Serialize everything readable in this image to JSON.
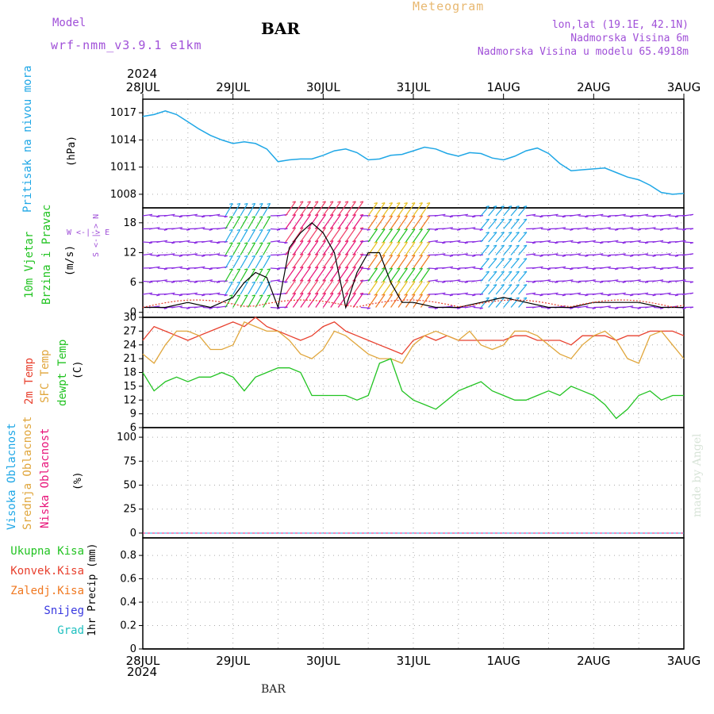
{
  "header": {
    "model_label": "Model",
    "model_name": "wrf-nmm_v3.9.1 e1km",
    "station": "BAR",
    "meteogram": "Meteogram",
    "lonlat": "lon,lat (19.1E, 42.1N)",
    "altitude": "Nadmorska Visina 6m",
    "model_altitude": "Nadmorska Visina u modelu 65.4918m",
    "year_top": "2024",
    "year_bottom": "2024",
    "footer_station": "BAR",
    "credit": "made by Angel"
  },
  "colors": {
    "pressure": "#1fa7e6",
    "temp2m": "#e8402e",
    "sfctemp": "#e0a63c",
    "dewpt": "#22c322",
    "grid": "#aaaaaa",
    "cloud_high": "#1fa7e6",
    "cloud_mid": "#e0a63c",
    "cloud_low": "#e8147a",
    "precip_total": "#22c322",
    "precip_conv": "#e8402e",
    "precip_frz": "#f07820",
    "precip_snow": "#3838e0",
    "precip_grad": "#20c0c0",
    "wind_label": "#a050d8",
    "header_purple": "#a050d8",
    "header_orange": "#e8b870"
  },
  "dates": [
    "28JUL",
    "29JUL",
    "30JUL",
    "31JUL",
    "1AUG",
    "2AUG",
    "3AUG"
  ],
  "panels": {
    "pressure": {
      "title": "Pritisak na nivou mora",
      "unit": "(hPa)"
    },
    "wind": {
      "title1": "10m Vjetar",
      "title2": "Brzina i Pravac",
      "unit": "(m/s)",
      "compass": "W <-|-> E",
      "compass_v": "S <-|-> N"
    },
    "temp": {
      "title1": "2m Temp",
      "title2": "SFC Temp",
      "title3": "dewpt Temp",
      "unit": "(C)"
    },
    "cloud": {
      "title1": "Visoka Oblacnost",
      "title2": "Srednja Oblacnost",
      "title3": "Niska Oblacnost",
      "unit": "(%)"
    },
    "precip": {
      "legend": [
        "Ukupna Kisa",
        "Konvek.Kisa",
        "Zaledj.Kisa",
        "Snijeg",
        "Grad"
      ],
      "unit": "1hr Precip (mm)"
    }
  },
  "chart_data": [
    {
      "type": "line",
      "title": "Pritisak na nivou mora",
      "ylabel": "(hPa)",
      "ylim": [
        1006.5,
        1018.5
      ],
      "yticks": [
        1008,
        1011,
        1014,
        1017
      ],
      "x_hours": [
        0,
        3,
        6,
        9,
        12,
        15,
        18,
        21,
        24,
        27,
        30,
        33,
        36,
        39,
        42,
        45,
        48,
        51,
        54,
        57,
        60,
        63,
        66,
        69,
        72,
        75,
        78,
        81,
        84,
        87,
        90,
        93,
        96,
        99,
        102,
        105,
        108,
        111,
        114,
        117,
        120,
        123,
        126,
        129,
        132,
        135,
        138,
        141,
        144
      ],
      "series": [
        {
          "name": "Pritisak na nivou mora",
          "values": [
            1016.6,
            1016.8,
            1017.2,
            1016.8,
            1016.0,
            1015.2,
            1014.5,
            1014.0,
            1013.6,
            1013.8,
            1013.6,
            1013.0,
            1011.6,
            1011.8,
            1011.9,
            1011.9,
            1012.3,
            1012.8,
            1013.0,
            1012.6,
            1011.8,
            1011.9,
            1012.3,
            1012.4,
            1012.8,
            1013.2,
            1013.0,
            1012.5,
            1012.2,
            1012.6,
            1012.5,
            1012.0,
            1011.8,
            1012.2,
            1012.8,
            1013.1,
            1012.5,
            1011.4,
            1010.6,
            1010.7,
            1010.8,
            1010.9,
            1010.4,
            1009.9,
            1009.6,
            1009.0,
            1008.2,
            1008.0,
            1008.1
          ]
        }
      ]
    },
    {
      "type": "line",
      "title": "10m Vjetar Brzina i Pravac",
      "ylabel": "(m/s)",
      "ylim": [
        -1,
        21
      ],
      "yticks": [
        0,
        6,
        12,
        18
      ],
      "x_hours": [
        0,
        6,
        12,
        18,
        24,
        27,
        30,
        33,
        36,
        39,
        42,
        45,
        48,
        51,
        54,
        57,
        60,
        63,
        66,
        69,
        72,
        78,
        84,
        90,
        96,
        102,
        108,
        114,
        120,
        126,
        132,
        138,
        144
      ],
      "series": [
        {
          "name": "Brzina",
          "values": [
            1,
            1,
            2,
            1,
            3,
            6,
            8,
            7,
            1,
            13,
            16,
            18,
            16,
            12,
            1,
            8,
            12,
            12,
            6,
            2,
            2,
            1,
            1,
            2,
            3,
            2,
            1,
            1,
            2,
            2,
            2,
            1,
            1
          ]
        }
      ]
    },
    {
      "type": "line",
      "title": "2m Temp / SFC Temp / dewpt Temp",
      "ylabel": "(C)",
      "ylim": [
        6,
        30
      ],
      "yticks": [
        6,
        9,
        12,
        15,
        18,
        21,
        24,
        27,
        30
      ],
      "x_hours": [
        0,
        3,
        6,
        9,
        12,
        15,
        18,
        21,
        24,
        27,
        30,
        33,
        36,
        39,
        42,
        45,
        48,
        51,
        54,
        57,
        60,
        63,
        66,
        69,
        72,
        75,
        78,
        81,
        84,
        87,
        90,
        93,
        96,
        99,
        102,
        105,
        108,
        111,
        114,
        117,
        120,
        123,
        126,
        129,
        132,
        135,
        138,
        141,
        144
      ],
      "series": [
        {
          "name": "2m Temp",
          "values": [
            25,
            28,
            27,
            26,
            25,
            26,
            27,
            28,
            29,
            28,
            30,
            28,
            27,
            26,
            25,
            26,
            28,
            29,
            27,
            26,
            25,
            24,
            23,
            22,
            25,
            26,
            25,
            26,
            25,
            25,
            25,
            25,
            25,
            26,
            26,
            25,
            25,
            25,
            24,
            26,
            26,
            26,
            25,
            26,
            26,
            27,
            27,
            27,
            26
          ]
        },
        {
          "name": "SFC Temp",
          "values": [
            22,
            20,
            24,
            27,
            27,
            26,
            23,
            23,
            24,
            29,
            28,
            27,
            27,
            25,
            22,
            21,
            23,
            27,
            26,
            24,
            22,
            21,
            21,
            20,
            24,
            26,
            27,
            26,
            25,
            27,
            24,
            23,
            24,
            27,
            27,
            26,
            24,
            22,
            21,
            24,
            26,
            27,
            25,
            21,
            20,
            26,
            27,
            24,
            21
          ]
        },
        {
          "name": "dewpt Temp",
          "values": [
            18,
            14,
            16,
            17,
            16,
            17,
            17,
            18,
            17,
            14,
            17,
            18,
            19,
            19,
            18,
            13,
            13,
            13,
            13,
            12,
            13,
            20,
            21,
            14,
            12,
            11,
            10,
            12,
            14,
            15,
            16,
            14,
            13,
            12,
            12,
            13,
            14,
            13,
            15,
            14,
            13,
            11,
            8,
            10,
            13,
            14,
            12,
            13,
            13
          ]
        }
      ]
    },
    {
      "type": "line",
      "title": "Visoka / Srednja / Niska Oblacnost",
      "ylabel": "(%)",
      "ylim": [
        -5,
        110
      ],
      "yticks": [
        0,
        25,
        50,
        75,
        100
      ],
      "series": [
        {
          "name": "Visoka Oblacnost",
          "values": [
            0,
            0
          ]
        },
        {
          "name": "Srednja Oblacnost",
          "values": [
            0,
            0
          ]
        },
        {
          "name": "Niska Oblacnost",
          "values": [
            0,
            0
          ]
        }
      ]
    },
    {
      "type": "line",
      "title": "1hr Precip",
      "ylabel": "1hr Precip (mm)",
      "ylim": [
        0,
        0.95
      ],
      "yticks": [
        0,
        0.2,
        0.4,
        0.6,
        0.8
      ],
      "series": [
        {
          "name": "Ukupna Kisa",
          "values": [
            0,
            0
          ]
        }
      ]
    }
  ]
}
